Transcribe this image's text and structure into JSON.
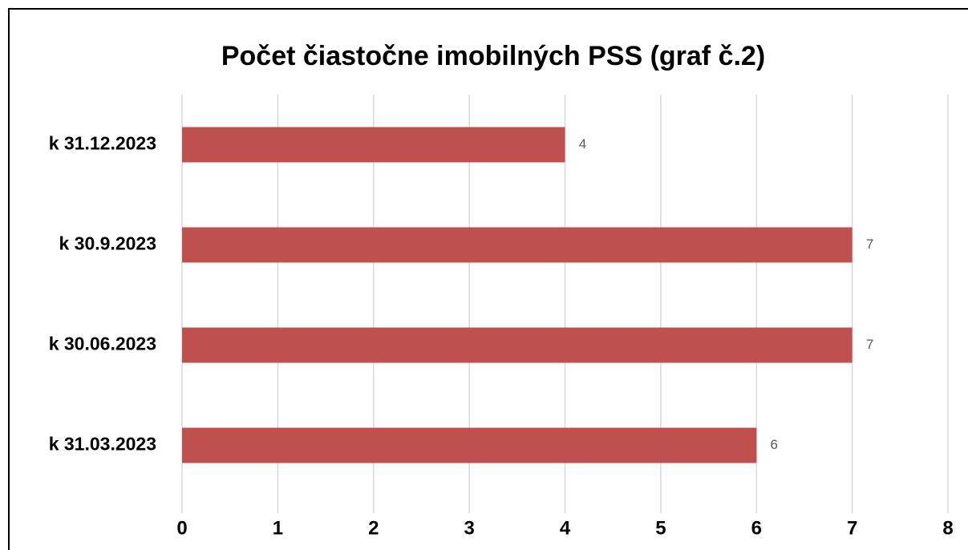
{
  "chart_data": {
    "type": "bar",
    "orientation": "horizontal",
    "title": "Počet čiastočne imobilných PSS (graf č.2)",
    "categories": [
      "k 31.12.2023",
      "k 30.9.2023",
      "k 30.06.2023",
      "k 31.03.2023"
    ],
    "values": [
      4,
      7,
      7,
      6
    ],
    "color": "#c0504d",
    "xlim": [
      0,
      8
    ],
    "xticks": [
      0,
      1,
      2,
      3,
      4,
      5,
      6,
      7,
      8
    ],
    "grid": true
  }
}
